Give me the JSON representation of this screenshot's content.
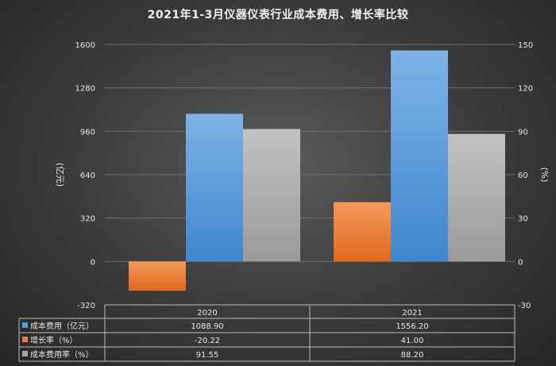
{
  "chart_data": {
    "type": "bar",
    "title": "2021年1-3月仪器仪表行业成本费用、增长率比较",
    "categories": [
      "2020",
      "2021"
    ],
    "series": [
      {
        "name": "成本费用（亿元）",
        "axis": "left",
        "color": "#5b9bd5",
        "values": [
          1088.9,
          1556.2
        ],
        "labels": [
          "1088.90",
          "1556.20"
        ]
      },
      {
        "name": "增长率（%）",
        "axis": "right",
        "color": "#ed7d31",
        "values": [
          -20.22,
          41.0
        ],
        "labels": [
          "-20.22",
          "41.00"
        ]
      },
      {
        "name": "成本费用率（%）",
        "axis": "right",
        "color": "#a5a5a5",
        "values": [
          91.55,
          88.2
        ],
        "labels": [
          "91.55",
          "88.20"
        ]
      }
    ],
    "ylabel_left": "(亿元)",
    "ylabel_right": "(%)",
    "ylim_left": [
      -320,
      1600
    ],
    "ylim_right": [
      -30,
      150
    ],
    "yticks_left": [
      "-320",
      "0",
      "320",
      "640",
      "960",
      "1280",
      "1600"
    ],
    "yticks_right": [
      "-30",
      "0",
      "30",
      "60",
      "90",
      "120",
      "150"
    ],
    "grid": true,
    "legend": "data-table-below"
  }
}
